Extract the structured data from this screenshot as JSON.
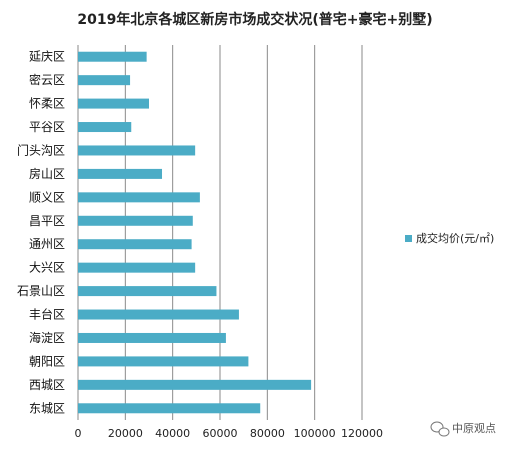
{
  "chart_data": {
    "type": "bar",
    "orientation": "horizontal",
    "title": "2019年北京各城区新房市场成交状况(普宅+豪宅+别墅)",
    "categories": [
      "延庆区",
      "密云区",
      "怀柔区",
      "平谷区",
      "门头沟区",
      "房山区",
      "顺义区",
      "昌平区",
      "通州区",
      "大兴区",
      "石景山区",
      "丰台区",
      "海淀区",
      "朝阳区",
      "西城区",
      "东城区"
    ],
    "series": [
      {
        "name": "成交均价(元/㎡)",
        "values": [
          29000,
          22000,
          30000,
          22500,
          49500,
          35500,
          51500,
          48500,
          48000,
          49500,
          58500,
          68000,
          62500,
          72000,
          98500,
          77000
        ]
      }
    ],
    "xlim": [
      0,
      120000
    ],
    "xticks": [
      "0",
      "20000",
      "40000",
      "60000",
      "80000",
      "100000",
      "120000"
    ],
    "grid": true,
    "legend_position": "right",
    "bar_color": "#4BACC6"
  },
  "watermark": {
    "text": "中原观点",
    "icon": "wechat-icon"
  }
}
